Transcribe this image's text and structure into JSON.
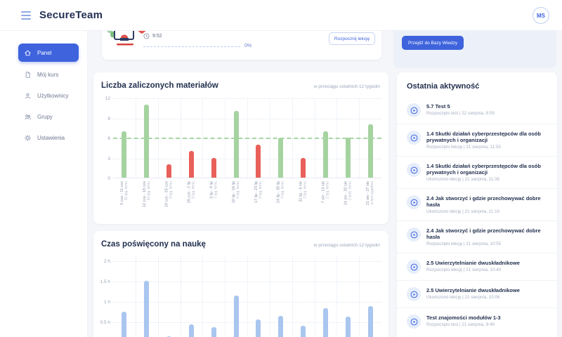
{
  "topbar": {
    "logo": "SecureTeam",
    "avatar_initials": "MS"
  },
  "sidebar": {
    "items": [
      {
        "label": "Panel",
        "icon": "home-icon",
        "active": true
      },
      {
        "label": "Mój kurs",
        "icon": "file-icon",
        "active": false
      },
      {
        "label": "Użytkownicy",
        "icon": "user-icon",
        "active": false
      },
      {
        "label": "Grupy",
        "icon": "group-icon",
        "active": false
      },
      {
        "label": "Ustawienia",
        "icon": "gear-icon",
        "active": false
      }
    ]
  },
  "hero": {
    "lesson_time": "9:52",
    "progress_percent": "0%",
    "start_button": "Rozpocznij lekcję",
    "knowledge_button": "Przejdź do Bazy Wiedzy"
  },
  "chart_data": [
    {
      "type": "bar",
      "title": "Liczba zaliczonych materiałów",
      "subtitle": "w przeciągu ostatnich 12 tygodni",
      "categories": [
        "5 cze - 11 cze",
        "12 cze - 18 cze",
        "19 cze - 25 cze",
        "26 cze - 2 lip",
        "3 lip - 9 lip",
        "10 lip - 16 lip",
        "17 lip - 23 lip",
        "24 lip - 30 lip",
        "31 lip - 6 sie",
        "7 sie - 13 sie",
        "14 sie - 20 sie",
        "21 sie - 27 sie"
      ],
      "categories_sub": [
        "11 tyg. temu",
        "10 tyg. temu",
        "9 tyg. temu",
        "8 tyg. temu",
        "7 tyg. temu",
        "6 tyg. temu",
        "5 tyg. temu",
        "4 tyg. temu",
        "3 tyg. temu",
        "2 tyg. temu",
        "1 tydz. temu",
        "w tym tygodniu"
      ],
      "values": [
        7,
        11,
        2,
        4,
        3,
        10,
        5,
        6,
        3,
        7,
        6,
        8
      ],
      "status": [
        "pass",
        "pass",
        "fail",
        "fail",
        "fail",
        "pass",
        "fail",
        "pass",
        "fail",
        "pass",
        "pass",
        "pass"
      ],
      "ylim": [
        0,
        12
      ],
      "yticks": [
        0,
        3,
        6,
        9,
        12
      ],
      "target_line": 6,
      "grid": true,
      "color_pass": "#a5d3a0",
      "color_fail": "#e9605a",
      "color_target": "#a9d6a4"
    },
    {
      "type": "bar",
      "title": "Czas poświęcony na naukę",
      "subtitle": "w przeciągu ostatnich 12 tygodni",
      "values_hours": [
        0.76,
        1.52,
        0.16,
        0.45,
        0.38,
        1.16,
        0.57,
        0.66,
        0.42,
        0.84,
        0.63,
        0.89
      ],
      "ylim": [
        0,
        2
      ],
      "yticks": [
        0.5,
        1,
        1.5,
        2
      ],
      "ytick_labels": [
        "0.5 h",
        "1 h",
        "1.5 h",
        "2 h"
      ],
      "grid": true,
      "color_bar": "#a9c6ef"
    }
  ],
  "activity": {
    "title": "Ostatnia aktywność",
    "items": [
      {
        "title": "5.7 Test 5",
        "meta": "Rozpoczęto test | 22 sierpnia, 8:59"
      },
      {
        "title": "1.4 Skutki działań cyberprzestępców dla osób prywatnych i organizacji",
        "meta": "Rozpoczęto lekcję | 21 sierpnia, 11:55"
      },
      {
        "title": "1.4 Skutki działań cyberprzestępców dla osób prywatnych i organizacji",
        "meta": "Ukończono lekcję | 21 sierpnia, 11:35"
      },
      {
        "title": "2.4 Jak stworzyć i gdzie przechowywać dobre hasła",
        "meta": "Ukończono lekcję | 21 sierpnia, 11:10"
      },
      {
        "title": "2.4 Jak stworzyć i gdzie przechowywać dobre hasła",
        "meta": "Rozpoczęto lekcję | 21 sierpnia, 10:55"
      },
      {
        "title": "2.5 Uwierzytelnianie dwuskładnikowe",
        "meta": "Rozpoczęto lekcję | 21 sierpnia, 10:40"
      },
      {
        "title": "2.5 Uwierzytelnianie dwuskładnikowe",
        "meta": "Ukończono lekcję | 21 sierpnia, 10:06"
      },
      {
        "title": "Test znajomości modułów 1-3",
        "meta": "Rozpoczęto test | 21 sierpnia, 9:49"
      }
    ]
  },
  "colors": {
    "accent": "#3e63dd",
    "bar_green": "#a5d3a0",
    "bar_red": "#e9605a",
    "bar_blue": "#a9c6ef",
    "target_green": "#a9d6a4"
  }
}
